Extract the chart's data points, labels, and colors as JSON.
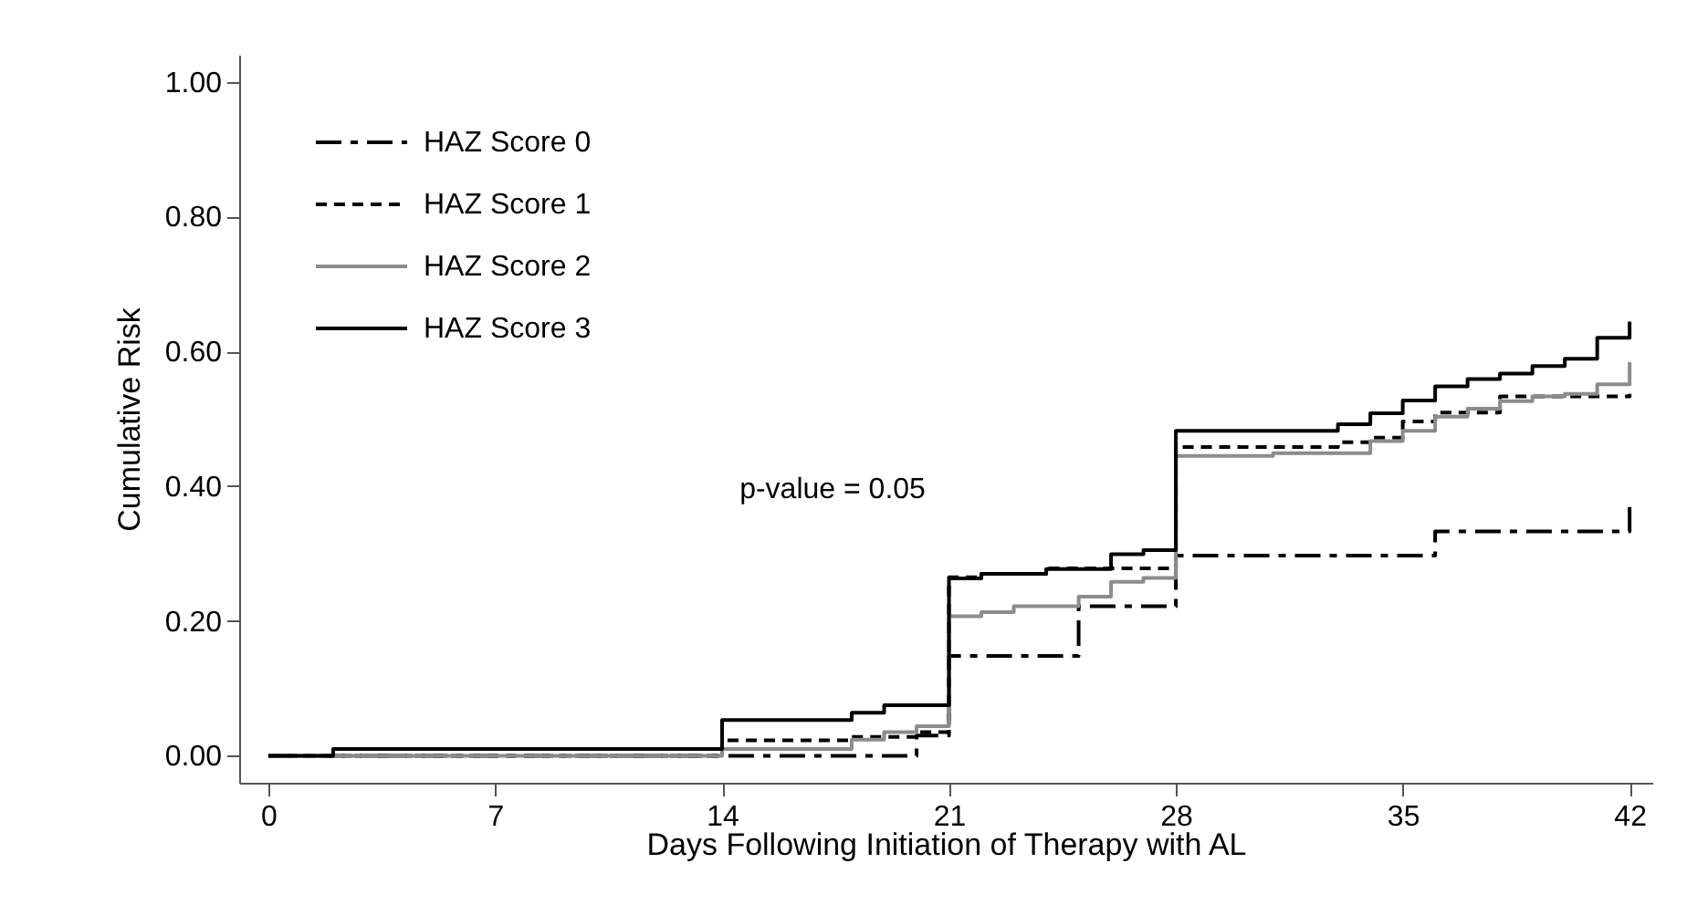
{
  "chart_data": {
    "type": "step",
    "xlabel": "Days Following Initiation of Therapy with AL",
    "ylabel": "Cumulative Risk",
    "annotations": [
      "p-value = 0.05"
    ],
    "xlim": [
      -0.9,
      42.7
    ],
    "xticks": [
      0,
      7,
      14,
      21,
      28,
      35,
      42
    ],
    "ylim": [
      -0.04,
      1.04
    ],
    "yticks": [
      {
        "value": 0,
        "label": "0.00"
      },
      {
        "value": 0.2,
        "label": "0.20"
      },
      {
        "value": 0.4,
        "label": "0.40"
      },
      {
        "value": 0.6,
        "label": "0.60"
      },
      {
        "value": 0.8,
        "label": "0.80"
      },
      {
        "value": 1,
        "label": "1.00"
      }
    ],
    "grid": false,
    "legend": "top left",
    "marker": "none",
    "series": [
      {
        "name": "HAZ Score 0",
        "color": "#000000",
        "line_style": "dashdot",
        "x": [
          0,
          20,
          21,
          25,
          28,
          36,
          42
        ],
        "values": [
          0,
          0.03,
          0.148,
          0.222,
          0.297,
          0.333,
          0.372
        ]
      },
      {
        "name": "HAZ Score 1",
        "color": "#000000",
        "line_style": "dashed",
        "x": [
          0,
          14,
          18,
          20,
          21,
          22,
          24,
          28,
          33,
          34,
          35,
          36,
          38,
          42
        ],
        "values": [
          0,
          0.023,
          0.028,
          0.035,
          0.265,
          0.27,
          0.278,
          0.458,
          0.465,
          0.472,
          0.496,
          0.509,
          0.533,
          0.537
        ]
      },
      {
        "name": "HAZ Score 2",
        "color": "#8c8c8c",
        "line_style": "solid",
        "x": [
          0,
          14,
          18,
          19,
          20,
          21,
          22,
          23,
          25,
          26,
          27,
          28,
          31,
          34,
          35,
          36,
          37,
          38,
          39,
          40,
          41,
          42
        ],
        "values": [
          0,
          0.01,
          0.024,
          0.035,
          0.044,
          0.207,
          0.213,
          0.222,
          0.236,
          0.258,
          0.264,
          0.445,
          0.449,
          0.467,
          0.482,
          0.503,
          0.515,
          0.526,
          0.533,
          0.537,
          0.551,
          0.584
        ]
      },
      {
        "name": "HAZ Score 3",
        "color": "#000000",
        "line_style": "solid",
        "x": [
          0,
          2,
          14,
          18,
          19,
          21,
          22,
          24,
          26,
          27,
          28,
          33,
          34,
          35,
          36,
          37,
          38,
          39,
          40,
          41,
          42
        ],
        "values": [
          0,
          0.01,
          0.053,
          0.064,
          0.075,
          0.263,
          0.27,
          0.277,
          0.299,
          0.305,
          0.482,
          0.492,
          0.508,
          0.527,
          0.548,
          0.559,
          0.567,
          0.578,
          0.589,
          0.62,
          0.644
        ]
      }
    ]
  }
}
